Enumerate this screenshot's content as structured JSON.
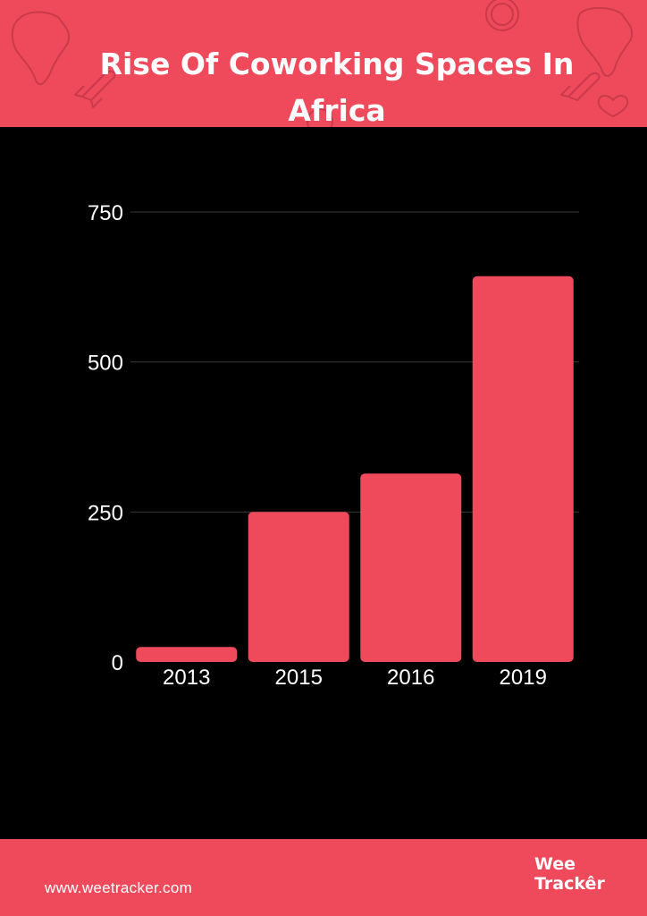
{
  "colors": {
    "accent": "#ee4a5c",
    "background": "#000000",
    "text": "#ffffff",
    "grid": "#3a3a3a"
  },
  "header": {
    "title": "Rise Of Coworking Spaces In Africa",
    "decor_icons": [
      "africa-map-icon",
      "rocket-icon",
      "dollar-coin-icon",
      "heart-icon"
    ]
  },
  "chart_data": {
    "type": "bar",
    "title": "Rise Of Coworking Spaces In Africa",
    "categories": [
      "2013",
      "2015",
      "2016",
      "2019"
    ],
    "values": [
      25,
      250,
      314,
      643
    ],
    "ylim": [
      0,
      750
    ],
    "yticks": [
      0,
      250,
      500,
      750
    ],
    "xlabel": "",
    "ylabel": "",
    "grid": true,
    "bar_color": "#ee4a5c"
  },
  "footer": {
    "website": "www.weetracker.com",
    "logo_line1": "Wee",
    "logo_line2": "Trackêr"
  }
}
